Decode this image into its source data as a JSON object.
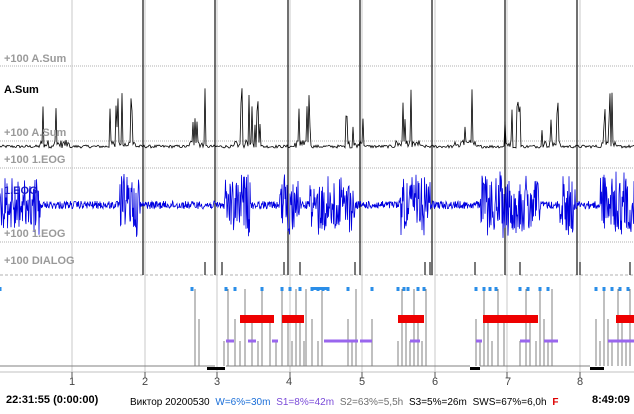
{
  "channels": {
    "asum_top_scale": "+100 A.Sum",
    "asum_name": "A.Sum",
    "asum_bottom_scale": "+100 A.Sum",
    "eog_top_scale": "+100 1.EOG",
    "eog_name": "1.EOG",
    "eog_bottom_scale": "+100 1.EOG",
    "dialog_scale": "+100 DIALOG"
  },
  "timeline": {
    "start_time": "22:31:55 (0:00:00)",
    "end_time": "8:49:09",
    "ticks": [
      "1",
      "2",
      "3",
      "4",
      "5",
      "6",
      "7",
      "8"
    ]
  },
  "status": {
    "subject": "Виктор 20200530",
    "w": "W=6%=30m",
    "s1": "S1=8%=42m",
    "s2": "S2=63%=5,5h",
    "s3": "S3=5%=26m",
    "sws": "SWS=67%=6,0h",
    "flag": "F"
  },
  "colors": {
    "asum_trace": "#000000",
    "eog_trace": "#0000e0",
    "grid": "#b0b0b0",
    "rem": "#ee0000",
    "wake": "#2a8ee8",
    "s1": "#9966ee",
    "hypno_line": "#808080",
    "w_text": "#1a6ed8",
    "s1_text": "#7a4ad8",
    "s2_text": "#707070",
    "flag_text": "#dd0000"
  }
}
